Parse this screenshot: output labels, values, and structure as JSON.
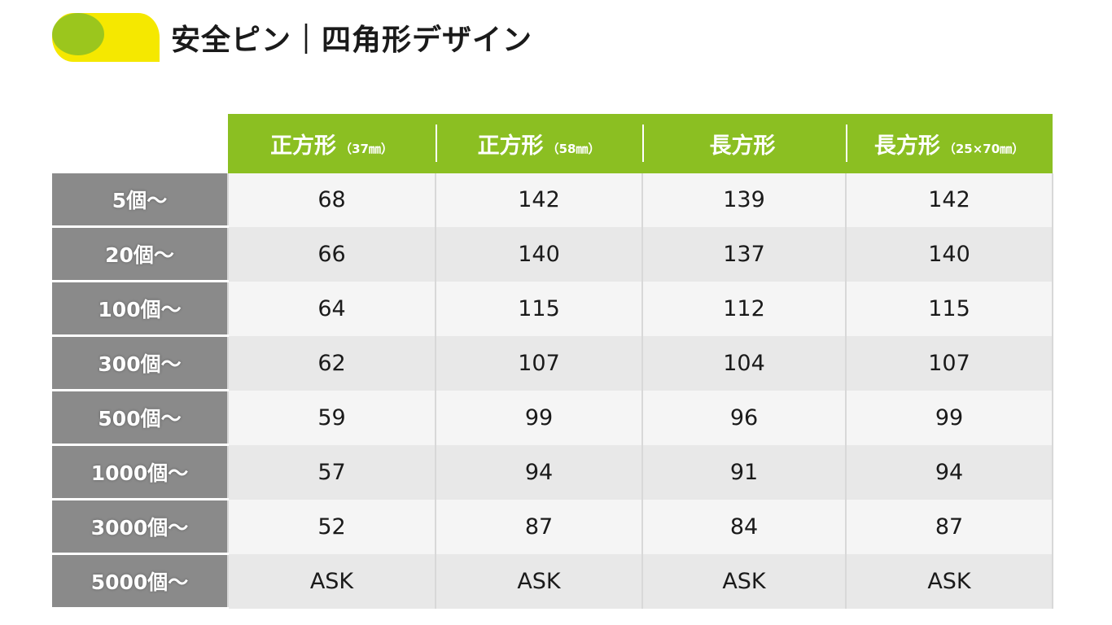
{
  "title": "安全ピン｜四角形デザイン",
  "colors": {
    "header_green": "#8bbf22",
    "row_header_gray": "#8a8a8a",
    "deco_yellow": "#f5e800",
    "deco_green": "#8bbf22"
  },
  "table": {
    "columns": [
      {
        "main": "正方形",
        "sub": "（37㎜）"
      },
      {
        "main": "正方形",
        "sub": "（58㎜）"
      },
      {
        "main": "長方形",
        "sub": ""
      },
      {
        "main": "長方形",
        "sub": "（25×70㎜）"
      }
    ],
    "rows": [
      {
        "label": "5個～",
        "values": [
          "68",
          "142",
          "139",
          "142"
        ]
      },
      {
        "label": "20個～",
        "values": [
          "66",
          "140",
          "137",
          "140"
        ]
      },
      {
        "label": "100個～",
        "values": [
          "64",
          "115",
          "112",
          "115"
        ]
      },
      {
        "label": "300個～",
        "values": [
          "62",
          "107",
          "104",
          "107"
        ]
      },
      {
        "label": "500個～",
        "values": [
          "59",
          "99",
          "96",
          "99"
        ]
      },
      {
        "label": "1000個～",
        "values": [
          "57",
          "94",
          "91",
          "94"
        ]
      },
      {
        "label": "3000個～",
        "values": [
          "52",
          "87",
          "84",
          "87"
        ]
      },
      {
        "label": "5000個～",
        "values": [
          "ASK",
          "ASK",
          "ASK",
          "ASK"
        ]
      }
    ]
  }
}
